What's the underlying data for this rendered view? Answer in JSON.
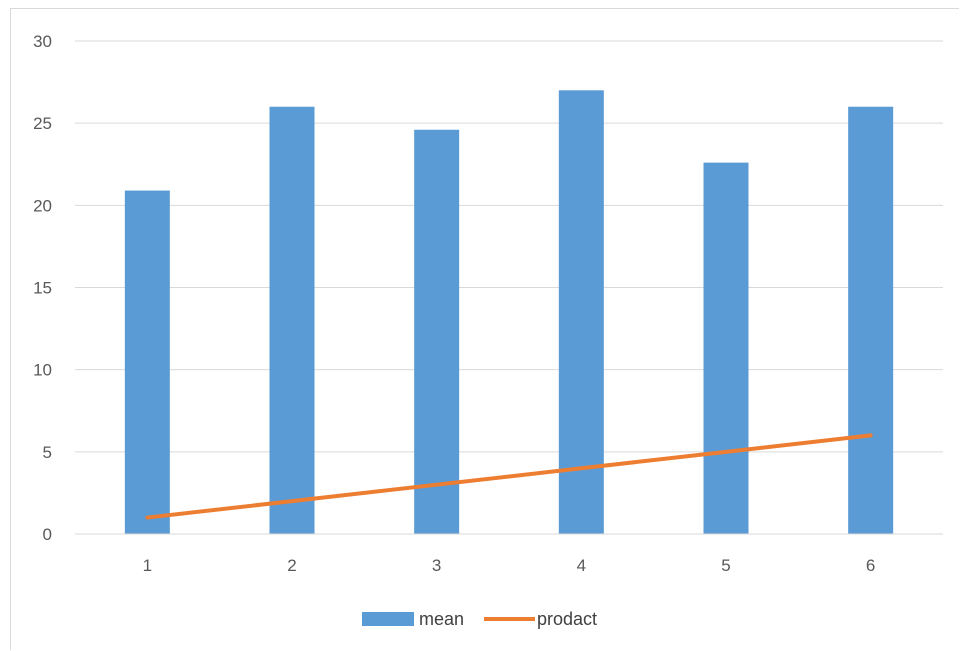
{
  "chart_data": {
    "type": "bar",
    "categories": [
      "1",
      "2",
      "3",
      "4",
      "5",
      "6"
    ],
    "series": [
      {
        "name": "mean",
        "type": "bar",
        "values": [
          20.9,
          26.0,
          24.6,
          27.0,
          22.6,
          26.0
        ],
        "color": "#5b9bd5"
      },
      {
        "name": "prodact",
        "type": "line",
        "values": [
          1,
          2,
          3,
          4,
          5,
          6
        ],
        "color": "#ed7d31"
      }
    ],
    "y_ticks": [
      "0",
      "5",
      "10",
      "15",
      "20",
      "25",
      "30"
    ],
    "ylim": [
      0,
      30
    ],
    "grid": true,
    "legend_position": "bottom",
    "gridline_color": "#d9d9d9"
  }
}
